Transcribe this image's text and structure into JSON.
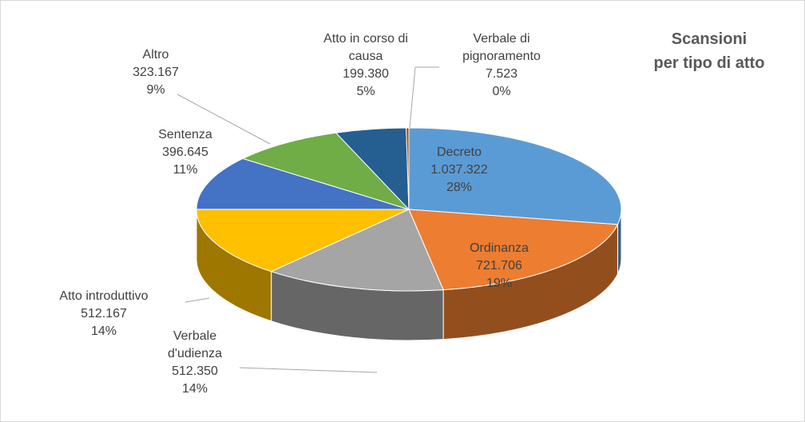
{
  "chart_data": {
    "type": "pie3d",
    "title": [
      "Scansioni",
      "per tipo di atto"
    ],
    "categories": [
      "Decreto",
      "Ordinanza",
      "Verbale d'udienza",
      "Atto introduttivo",
      "Sentenza",
      "Altro",
      "Atto in corso di causa",
      "Verbale di pignoramento"
    ],
    "values": [
      1037322,
      721706,
      512350,
      512167,
      396645,
      323167,
      199380,
      7523
    ],
    "value_labels": [
      "1.037.322",
      "721.706",
      "512.350",
      "512.167",
      "396.645",
      "323.167",
      "199.380",
      "7.523"
    ],
    "percents": [
      28,
      19,
      14,
      14,
      11,
      9,
      5,
      0
    ],
    "percent_labels": [
      "28%",
      "19%",
      "14%",
      "14%",
      "11%",
      "9%",
      "5%",
      "0%"
    ],
    "colors": [
      "#5b9bd5",
      "#ed7d31",
      "#a5a5a5",
      "#ffc000",
      "#4472c4",
      "#70ad47",
      "#255e91",
      "#9e480e"
    ]
  }
}
